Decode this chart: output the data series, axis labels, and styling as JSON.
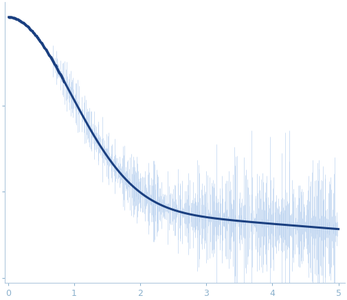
{
  "title": "",
  "xlabel": "",
  "ylabel": "",
  "xlim": [
    -0.05,
    5.1
  ],
  "background_color": "#ffffff",
  "raw_color": "#b0ccee",
  "smooth_color": "#1a3f80",
  "smooth_dot_color": "#1a3f80",
  "axis_color": "#a0b8d0",
  "tick_color": "#8ab0cc",
  "spine_color": "#b0c8dd"
}
